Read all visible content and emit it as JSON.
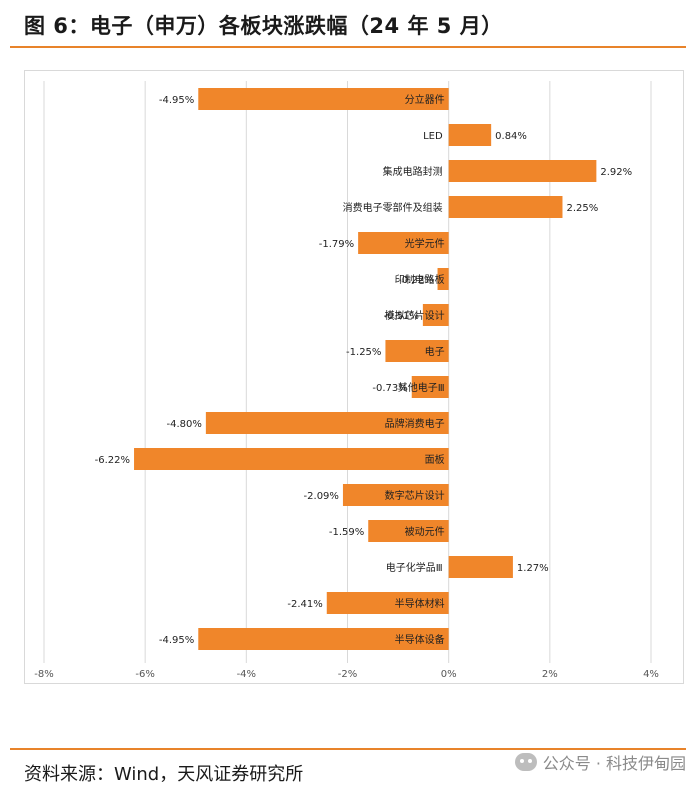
{
  "header": {
    "title": "图 6：电子（申万）各板块涨跌幅（24 年 5 月）"
  },
  "footer": {
    "source": "资料来源：Wind，天风证券研究所",
    "watermark": "公众号 · 科技伊甸园"
  },
  "colors": {
    "accent": "#e8832a",
    "bar": "#f0862a",
    "grid": "#d9d9d9"
  },
  "chart_data": {
    "type": "bar",
    "orientation": "horizontal",
    "title": "",
    "xlabel": "",
    "ylabel": "",
    "xlim": [
      -0.08,
      0.04
    ],
    "xticks": [
      -0.08,
      -0.06,
      -0.04,
      -0.02,
      0,
      0.02,
      0.04
    ],
    "xtick_labels": [
      "-8%",
      "-6%",
      "-4%",
      "-2%",
      "0%",
      "2%",
      "4%"
    ],
    "grid": true,
    "categories": [
      "分立器件",
      "LED",
      "集成电路封测",
      "消费电子零部件及组装",
      "光学元件",
      "印制电路板",
      "模拟芯片设计",
      "电子",
      "其他电子Ⅲ",
      "品牌消费电子",
      "面板",
      "数字芯片设计",
      "被动元件",
      "电子化学品Ⅲ",
      "半导体材料",
      "半导体设备"
    ],
    "values": [
      -0.0495,
      0.0084,
      0.0292,
      0.0225,
      -0.0179,
      -0.0022,
      -0.0051,
      -0.0125,
      -0.0073,
      -0.048,
      -0.0622,
      -0.0209,
      -0.0159,
      0.0127,
      -0.0241,
      -0.0495
    ],
    "data_labels": [
      "-4.95%",
      "0.84%",
      "2.92%",
      "2.25%",
      "-1.79%",
      "-0.22%",
      "-0.51%",
      "-1.25%",
      "-0.73%",
      "-4.80%",
      "-6.22%",
      "-2.09%",
      "-1.59%",
      "1.27%",
      "-2.41%",
      "-4.95%"
    ]
  }
}
